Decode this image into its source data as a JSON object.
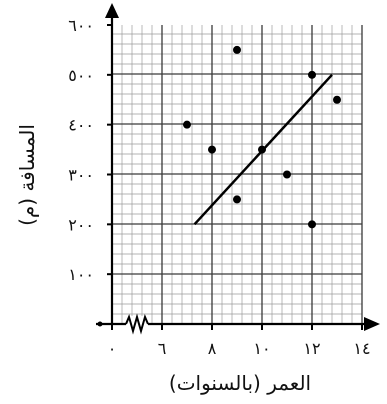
{
  "chart_data": {
    "type": "scatter",
    "title": "",
    "xlabel": "العمر (بالسنوات)",
    "ylabel": "المسافة (م)",
    "xlim": [
      6,
      14
    ],
    "ylim": [
      0,
      600
    ],
    "x_axis_break": true,
    "x_ticks": [
      {
        "value": 0,
        "label": "٠"
      },
      {
        "value": 6,
        "label": "٦"
      },
      {
        "value": 8,
        "label": "٨"
      },
      {
        "value": 10,
        "label": "١٠"
      },
      {
        "value": 12,
        "label": "١٢"
      },
      {
        "value": 14,
        "label": "١٤"
      }
    ],
    "y_ticks": [
      {
        "value": 100,
        "label": "١٠٠"
      },
      {
        "value": 200,
        "label": "٢٠٠"
      },
      {
        "value": 300,
        "label": "٣٠٠"
      },
      {
        "value": 400,
        "label": "٤٠٠"
      },
      {
        "value": 500,
        "label": "٥٠٠"
      },
      {
        "value": 600,
        "label": "٦٠٠"
      }
    ],
    "grid": true,
    "points": [
      {
        "x": 7,
        "y": 400
      },
      {
        "x": 8,
        "y": 350
      },
      {
        "x": 9,
        "y": 550
      },
      {
        "x": 9,
        "y": 250
      },
      {
        "x": 10,
        "y": 350
      },
      {
        "x": 11,
        "y": 300
      },
      {
        "x": 12,
        "y": 500
      },
      {
        "x": 12,
        "y": 200
      },
      {
        "x": 13,
        "y": 450
      }
    ],
    "trend_line": {
      "x1": 7.3,
      "y1": 200,
      "x2": 12.8,
      "y2": 500
    }
  }
}
